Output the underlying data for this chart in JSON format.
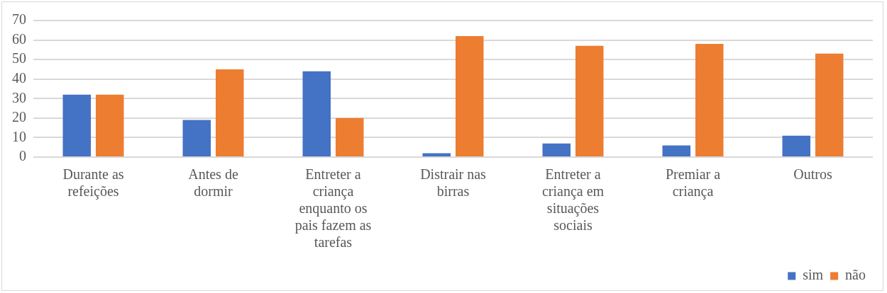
{
  "chart_data": {
    "type": "bar",
    "categories": [
      "Durante as refeições",
      "Antes de dormir",
      "Entreter a criança enquanto os pais fazem as tarefas",
      "Distrair nas birras",
      "Entreter a criança em situações sociais",
      "Premiar a criança",
      "Outros"
    ],
    "series": [
      {
        "name": "sim",
        "color": "#4472c4",
        "values": [
          32,
          19,
          44,
          2,
          7,
          6,
          11
        ]
      },
      {
        "name": "não",
        "color": "#ed7d31",
        "values": [
          32,
          45,
          20,
          62,
          57,
          58,
          53
        ]
      }
    ],
    "ylim": [
      0,
      70
    ],
    "yticks": [
      0,
      10,
      20,
      30,
      40,
      50,
      60,
      70
    ],
    "grid": "y",
    "legend": "bottom right"
  }
}
